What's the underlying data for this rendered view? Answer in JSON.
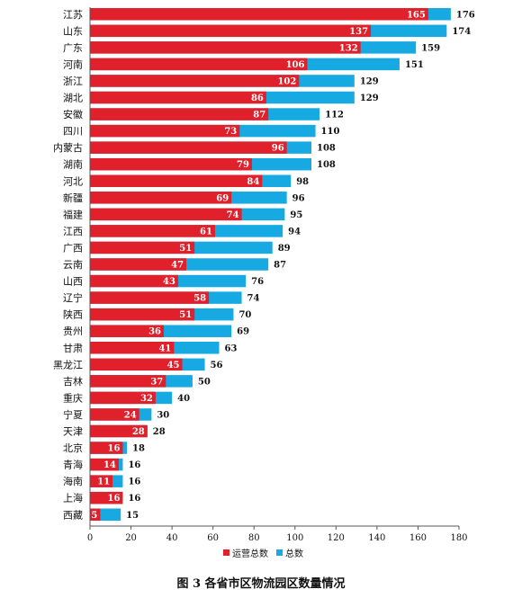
{
  "chart_data": {
    "type": "bar",
    "orientation": "horizontal",
    "categories": [
      "江苏",
      "山东",
      "广东",
      "河南",
      "浙江",
      "湖北",
      "安徽",
      "四川",
      "内蒙古",
      "湖南",
      "河北",
      "新疆",
      "福建",
      "江西",
      "广西",
      "云南",
      "山西",
      "辽宁",
      "陕西",
      "贵州",
      "甘肃",
      "黑龙江",
      "吉林",
      "重庆",
      "宁夏",
      "天津",
      "北京",
      "青海",
      "海南",
      "上海",
      "西藏"
    ],
    "series": [
      {
        "name": "运营总数",
        "color": "#e0202b",
        "values": [
          165,
          137,
          132,
          106,
          102,
          86,
          87,
          73,
          96,
          79,
          84,
          69,
          74,
          61,
          51,
          47,
          43,
          58,
          51,
          36,
          41,
          45,
          37,
          32,
          24,
          28,
          16,
          14,
          11,
          16,
          5
        ]
      },
      {
        "name": "总数",
        "color": "#17a9e1",
        "values": [
          176,
          174,
          159,
          151,
          129,
          129,
          112,
          110,
          108,
          108,
          98,
          96,
          95,
          94,
          89,
          87,
          76,
          74,
          70,
          69,
          63,
          56,
          50,
          40,
          30,
          28,
          18,
          16,
          16,
          16,
          15
        ]
      }
    ],
    "xlim": [
      0,
      180
    ],
    "xticks": [
      "0",
      "20",
      "40",
      "60",
      "80",
      "100",
      "120",
      "140",
      "160",
      "180"
    ],
    "legend_position": "bottom-center",
    "grid": false,
    "title": "图 3  各省市区物流园区数量情况"
  }
}
